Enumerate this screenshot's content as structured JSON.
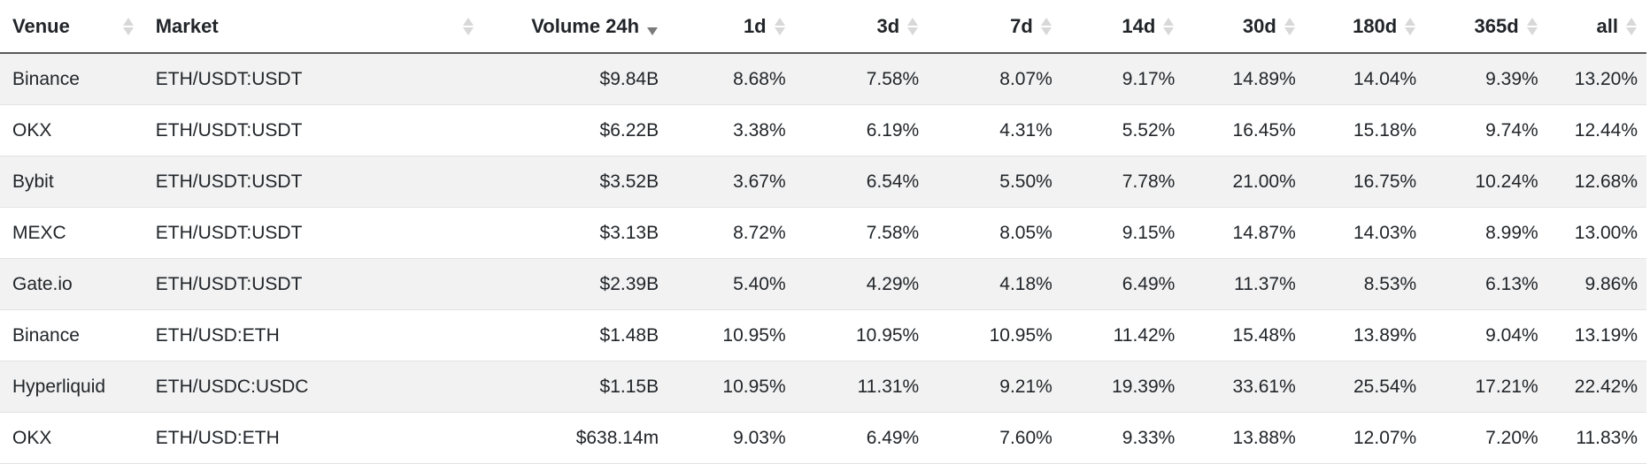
{
  "table": {
    "columns": [
      {
        "label": "Venue",
        "sort": "none"
      },
      {
        "label": "Market",
        "sort": "none"
      },
      {
        "label": "Volume 24h",
        "sort": "desc"
      },
      {
        "label": "1d",
        "sort": "none"
      },
      {
        "label": "3d",
        "sort": "none"
      },
      {
        "label": "7d",
        "sort": "none"
      },
      {
        "label": "14d",
        "sort": "none"
      },
      {
        "label": "30d",
        "sort": "none"
      },
      {
        "label": "180d",
        "sort": "none"
      },
      {
        "label": "365d",
        "sort": "none"
      },
      {
        "label": "all",
        "sort": "none"
      }
    ],
    "rows": [
      {
        "venue": "Binance",
        "market": "ETH/USDT:USDT",
        "volume": "$9.84B",
        "d1": "8.68%",
        "d3": "7.58%",
        "d7": "8.07%",
        "d14": "9.17%",
        "d30": "14.89%",
        "d180": "14.04%",
        "d365": "9.39%",
        "all": "13.20%"
      },
      {
        "venue": "OKX",
        "market": "ETH/USDT:USDT",
        "volume": "$6.22B",
        "d1": "3.38%",
        "d3": "6.19%",
        "d7": "4.31%",
        "d14": "5.52%",
        "d30": "16.45%",
        "d180": "15.18%",
        "d365": "9.74%",
        "all": "12.44%"
      },
      {
        "venue": "Bybit",
        "market": "ETH/USDT:USDT",
        "volume": "$3.52B",
        "d1": "3.67%",
        "d3": "6.54%",
        "d7": "5.50%",
        "d14": "7.78%",
        "d30": "21.00%",
        "d180": "16.75%",
        "d365": "10.24%",
        "all": "12.68%"
      },
      {
        "venue": "MEXC",
        "market": "ETH/USDT:USDT",
        "volume": "$3.13B",
        "d1": "8.72%",
        "d3": "7.58%",
        "d7": "8.05%",
        "d14": "9.15%",
        "d30": "14.87%",
        "d180": "14.03%",
        "d365": "8.99%",
        "all": "13.00%"
      },
      {
        "venue": "Gate.io",
        "market": "ETH/USDT:USDT",
        "volume": "$2.39B",
        "d1": "5.40%",
        "d3": "4.29%",
        "d7": "4.18%",
        "d14": "6.49%",
        "d30": "11.37%",
        "d180": "8.53%",
        "d365": "6.13%",
        "all": "9.86%"
      },
      {
        "venue": "Binance",
        "market": "ETH/USD:ETH",
        "volume": "$1.48B",
        "d1": "10.95%",
        "d3": "10.95%",
        "d7": "10.95%",
        "d14": "11.42%",
        "d30": "15.48%",
        "d180": "13.89%",
        "d365": "9.04%",
        "all": "13.19%"
      },
      {
        "venue": "Hyperliquid",
        "market": "ETH/USDC:USDC",
        "volume": "$1.15B",
        "d1": "10.95%",
        "d3": "11.31%",
        "d7": "9.21%",
        "d14": "19.39%",
        "d30": "33.61%",
        "d180": "25.54%",
        "d365": "17.21%",
        "all": "22.42%"
      },
      {
        "venue": "OKX",
        "market": "ETH/USD:ETH",
        "volume": "$638.14m",
        "d1": "9.03%",
        "d3": "6.49%",
        "d7": "7.60%",
        "d14": "9.33%",
        "d30": "13.88%",
        "d180": "12.07%",
        "d365": "7.20%",
        "all": "11.83%"
      }
    ]
  }
}
